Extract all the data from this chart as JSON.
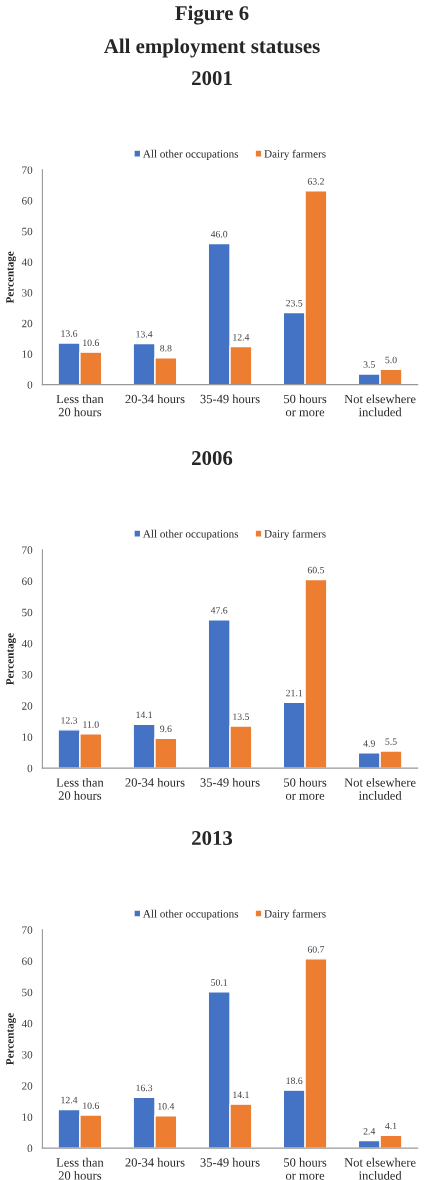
{
  "chart_data": [
    {
      "type": "bar",
      "title": "2001",
      "annotations": [
        "Figure 6",
        "All employment statuses"
      ],
      "ylabel": "Percentage",
      "categories": [
        "Less than 20 hours",
        "20-34 hours",
        "35-49 hours",
        "50 hours or more",
        "Not elsewhere included"
      ],
      "series": [
        {
          "name": "All other occupations",
          "color": "#4472c4",
          "values": [
            13.6,
            13.4,
            46.0,
            23.5,
            3.5
          ],
          "value_labels": [
            "13.6",
            "13.4",
            "46.0",
            "23.5",
            "3.5"
          ]
        },
        {
          "name": "Dairy farmers",
          "color": "#ed7d31",
          "values": [
            10.6,
            8.8,
            12.4,
            63.2,
            5.0
          ],
          "value_labels": [
            "10.6",
            "8.8",
            "12.4",
            "63.2",
            "5.0"
          ]
        }
      ],
      "ylim": [
        0,
        70
      ],
      "yticks": [
        0,
        10,
        20,
        30,
        40,
        50,
        60,
        70
      ],
      "legend": "top",
      "grid": false
    },
    {
      "type": "bar",
      "title": "2006",
      "ylabel": "Percentage",
      "categories": [
        "Less than 20 hours",
        "20-34 hours",
        "35-49 hours",
        "50 hours or more",
        "Not elsewhere included"
      ],
      "series": [
        {
          "name": "All other occupations",
          "color": "#4472c4",
          "values": [
            12.3,
            14.1,
            47.6,
            21.1,
            4.9
          ],
          "value_labels": [
            "12.3",
            "14.1",
            "47.6",
            "21.1",
            "4.9"
          ]
        },
        {
          "name": "Dairy farmers",
          "color": "#ed7d31",
          "values": [
            11.0,
            9.6,
            13.5,
            60.5,
            5.5
          ],
          "value_labels": [
            "11.0",
            "9.6",
            "13.5",
            "60.5",
            "5.5"
          ]
        }
      ],
      "ylim": [
        0,
        70
      ],
      "yticks": [
        0,
        10,
        20,
        30,
        40,
        50,
        60,
        70
      ],
      "legend": "top",
      "grid": false
    },
    {
      "type": "bar",
      "title": "2013",
      "ylabel": "Percentage",
      "categories": [
        "Less than 20 hours",
        "20-34 hours",
        "35-49 hours",
        "50 hours or more",
        "Not elsewhere included"
      ],
      "series": [
        {
          "name": "All other occupations",
          "color": "#4472c4",
          "values": [
            12.4,
            16.3,
            50.1,
            18.6,
            2.4
          ],
          "value_labels": [
            "12.4",
            "16.3",
            "50.1",
            "18.6",
            "2.4"
          ]
        },
        {
          "name": "Dairy farmers",
          "color": "#ed7d31",
          "values": [
            10.6,
            10.4,
            14.1,
            60.7,
            4.1
          ],
          "value_labels": [
            "10.6",
            "10.4",
            "14.1",
            "60.7",
            "4.1"
          ]
        }
      ],
      "ylim": [
        0,
        70
      ],
      "yticks": [
        0,
        10,
        20,
        30,
        40,
        50,
        60,
        70
      ],
      "legend": "top",
      "grid": false
    }
  ]
}
